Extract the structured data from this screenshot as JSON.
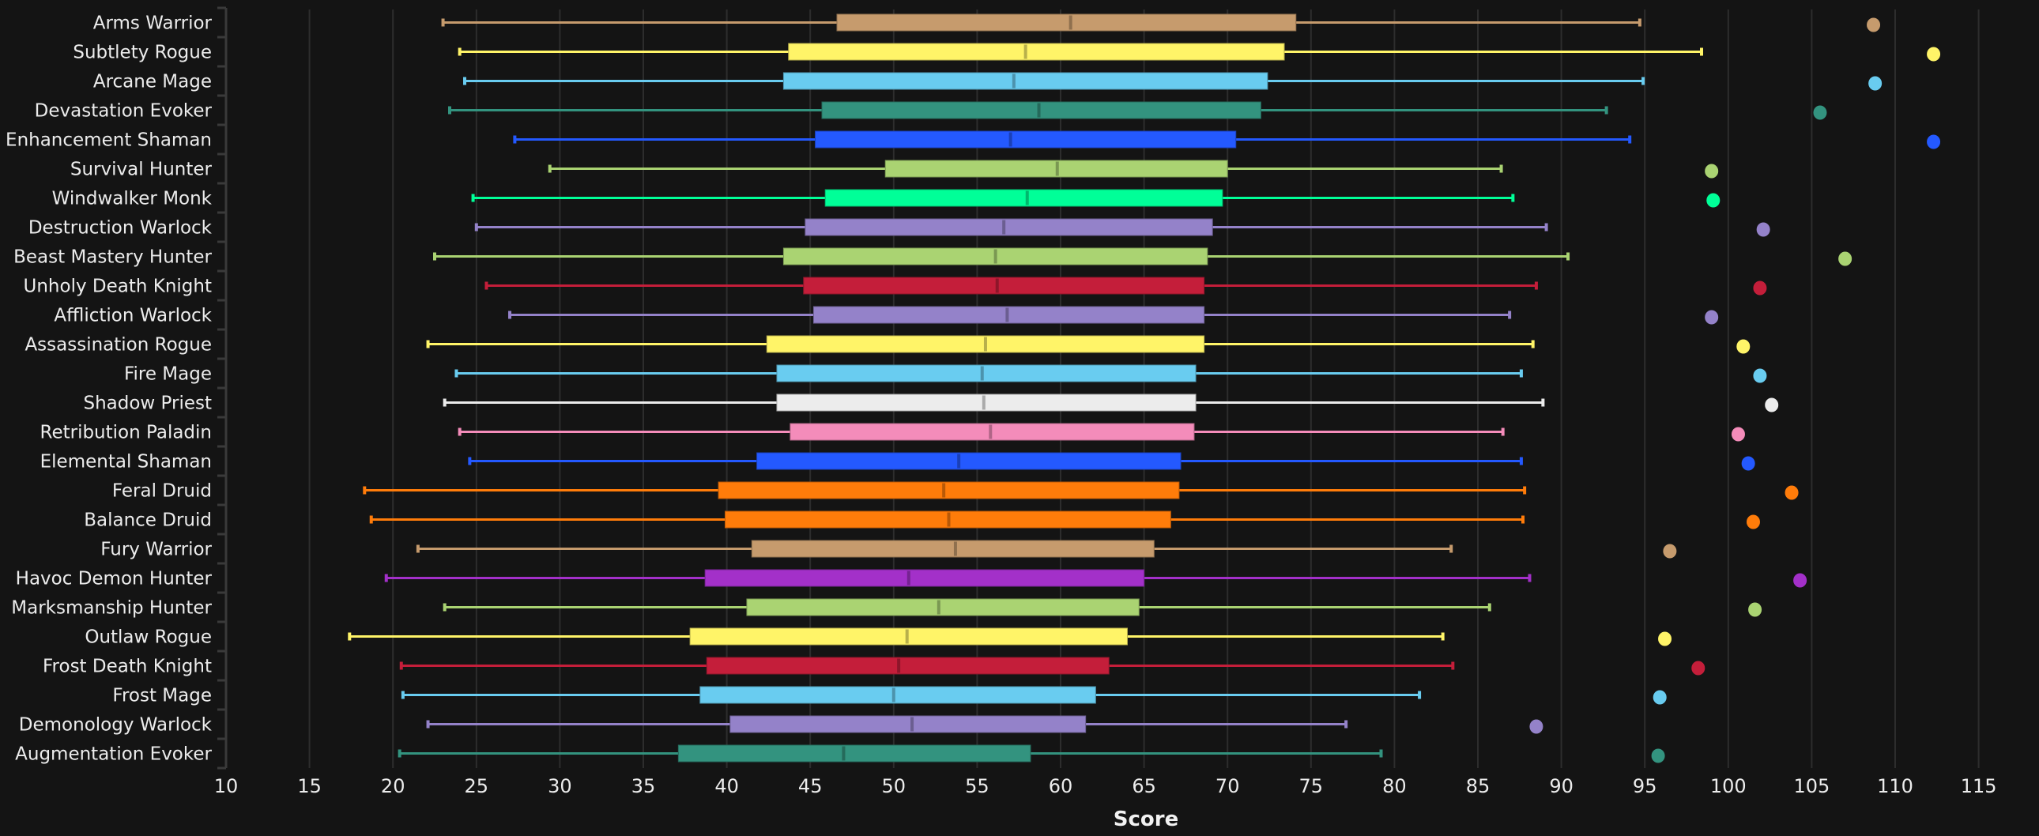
{
  "chart_data": {
    "type": "boxplot",
    "orientation": "horizontal",
    "title": "",
    "xlabel": "Score",
    "ylabel": "",
    "xlim": [
      10,
      117
    ],
    "xticks": [
      10,
      15,
      20,
      25,
      30,
      35,
      40,
      45,
      50,
      55,
      60,
      65,
      70,
      75,
      80,
      85,
      90,
      95,
      100,
      105,
      110,
      115
    ],
    "grid": "vertical",
    "legend": null,
    "series": [
      {
        "name": "Arms Warrior",
        "color": "#C69B6D",
        "whisker_low": 23.0,
        "q1": 46.6,
        "median": 60.6,
        "q3": 74.1,
        "whisker_high": 94.7,
        "outlier": 108.7
      },
      {
        "name": "Subtlety Rogue",
        "color": "#FFF468",
        "whisker_low": 24.0,
        "q1": 43.7,
        "median": 57.9,
        "q3": 73.4,
        "whisker_high": 98.4,
        "outlier": 112.3
      },
      {
        "name": "Arcane Mage",
        "color": "#69CCF0",
        "whisker_low": 24.3,
        "q1": 43.4,
        "median": 57.2,
        "q3": 72.4,
        "whisker_high": 94.9,
        "outlier": 108.8
      },
      {
        "name": "Devastation Evoker",
        "color": "#33937F",
        "whisker_low": 23.4,
        "q1": 45.7,
        "median": 58.7,
        "q3": 72.0,
        "whisker_high": 92.7,
        "outlier": 105.5
      },
      {
        "name": "Enhancement Shaman",
        "color": "#2459FF",
        "whisker_low": 27.3,
        "q1": 45.3,
        "median": 57.0,
        "q3": 70.5,
        "whisker_high": 94.1,
        "outlier": 112.3
      },
      {
        "name": "Survival Hunter",
        "color": "#AAD372",
        "whisker_low": 29.4,
        "q1": 49.5,
        "median": 59.8,
        "q3": 70.0,
        "whisker_high": 86.4,
        "outlier": 99.0
      },
      {
        "name": "Windwalker Monk",
        "color": "#00FF98",
        "whisker_low": 24.8,
        "q1": 45.9,
        "median": 58.0,
        "q3": 69.7,
        "whisker_high": 87.1,
        "outlier": 99.1
      },
      {
        "name": "Destruction Warlock",
        "color": "#9482C9",
        "whisker_low": 25.0,
        "q1": 44.7,
        "median": 56.6,
        "q3": 69.1,
        "whisker_high": 89.1,
        "outlier": 102.1
      },
      {
        "name": "Beast Mastery Hunter",
        "color": "#AAD372",
        "whisker_low": 22.5,
        "q1": 43.4,
        "median": 56.1,
        "q3": 68.8,
        "whisker_high": 90.4,
        "outlier": 107.0
      },
      {
        "name": "Unholy Death Knight",
        "color": "#C41E3A",
        "whisker_low": 25.6,
        "q1": 44.6,
        "median": 56.2,
        "q3": 68.6,
        "whisker_high": 88.5,
        "outlier": 101.9
      },
      {
        "name": "Affliction Warlock",
        "color": "#9482C9",
        "whisker_low": 27.0,
        "q1": 45.2,
        "median": 56.8,
        "q3": 68.6,
        "whisker_high": 86.9,
        "outlier": 99.0
      },
      {
        "name": "Assassination Rogue",
        "color": "#FFF468",
        "whisker_low": 22.1,
        "q1": 42.4,
        "median": 55.5,
        "q3": 68.6,
        "whisker_high": 88.3,
        "outlier": 100.9
      },
      {
        "name": "Fire Mage",
        "color": "#69CCF0",
        "whisker_low": 23.8,
        "q1": 43.0,
        "median": 55.3,
        "q3": 68.1,
        "whisker_high": 87.6,
        "outlier": 101.9
      },
      {
        "name": "Shadow Priest",
        "color": "#ECECEC",
        "whisker_low": 23.1,
        "q1": 43.0,
        "median": 55.4,
        "q3": 68.1,
        "whisker_high": 88.9,
        "outlier": 102.6
      },
      {
        "name": "Retribution Paladin",
        "color": "#F48CBA",
        "whisker_low": 24.0,
        "q1": 43.8,
        "median": 55.8,
        "q3": 68.0,
        "whisker_high": 86.5,
        "outlier": 100.6
      },
      {
        "name": "Elemental Shaman",
        "color": "#2459FF",
        "whisker_low": 24.6,
        "q1": 41.8,
        "median": 53.9,
        "q3": 67.2,
        "whisker_high": 87.6,
        "outlier": 101.2
      },
      {
        "name": "Feral Druid",
        "color": "#FF7C0A",
        "whisker_low": 18.3,
        "q1": 39.5,
        "median": 53.0,
        "q3": 67.1,
        "whisker_high": 87.8,
        "outlier": 103.8
      },
      {
        "name": "Balance Druid",
        "color": "#FF7C0A",
        "whisker_low": 18.7,
        "q1": 39.9,
        "median": 53.3,
        "q3": 66.6,
        "whisker_high": 87.7,
        "outlier": 101.5
      },
      {
        "name": "Fury Warrior",
        "color": "#C69B6D",
        "whisker_low": 21.5,
        "q1": 41.5,
        "median": 53.7,
        "q3": 65.6,
        "whisker_high": 83.4,
        "outlier": 96.5
      },
      {
        "name": "Havoc Demon Hunter",
        "color": "#A330C9",
        "whisker_low": 19.6,
        "q1": 38.7,
        "median": 50.9,
        "q3": 65.0,
        "whisker_high": 88.1,
        "outlier": 104.3
      },
      {
        "name": "Marksmanship Hunter",
        "color": "#AAD372",
        "whisker_low": 23.1,
        "q1": 41.2,
        "median": 52.7,
        "q3": 64.7,
        "whisker_high": 85.7,
        "outlier": 101.6
      },
      {
        "name": "Outlaw Rogue",
        "color": "#FFF468",
        "whisker_low": 17.4,
        "q1": 37.8,
        "median": 50.8,
        "q3": 64.0,
        "whisker_high": 82.9,
        "outlier": 96.2
      },
      {
        "name": "Frost Death Knight",
        "color": "#C41E3A",
        "whisker_low": 20.5,
        "q1": 38.8,
        "median": 50.3,
        "q3": 62.9,
        "whisker_high": 83.5,
        "outlier": 98.2
      },
      {
        "name": "Frost Mage",
        "color": "#69CCF0",
        "whisker_low": 20.6,
        "q1": 38.4,
        "median": 50.0,
        "q3": 62.1,
        "whisker_high": 81.5,
        "outlier": 95.9
      },
      {
        "name": "Demonology Warlock",
        "color": "#9482C9",
        "whisker_low": 22.1,
        "q1": 40.2,
        "median": 51.1,
        "q3": 61.5,
        "whisker_high": 77.1,
        "outlier": 88.5
      },
      {
        "name": "Augmentation Evoker",
        "color": "#33937F",
        "whisker_low": 20.4,
        "q1": 37.1,
        "median": 47.0,
        "q3": 58.2,
        "whisker_high": 79.2,
        "outlier": 95.8
      }
    ]
  },
  "layout": {
    "background": "#141414",
    "grid_color": "#2d2d2d",
    "axis_color": "#3a3a3a",
    "text_color": "#ececec"
  }
}
